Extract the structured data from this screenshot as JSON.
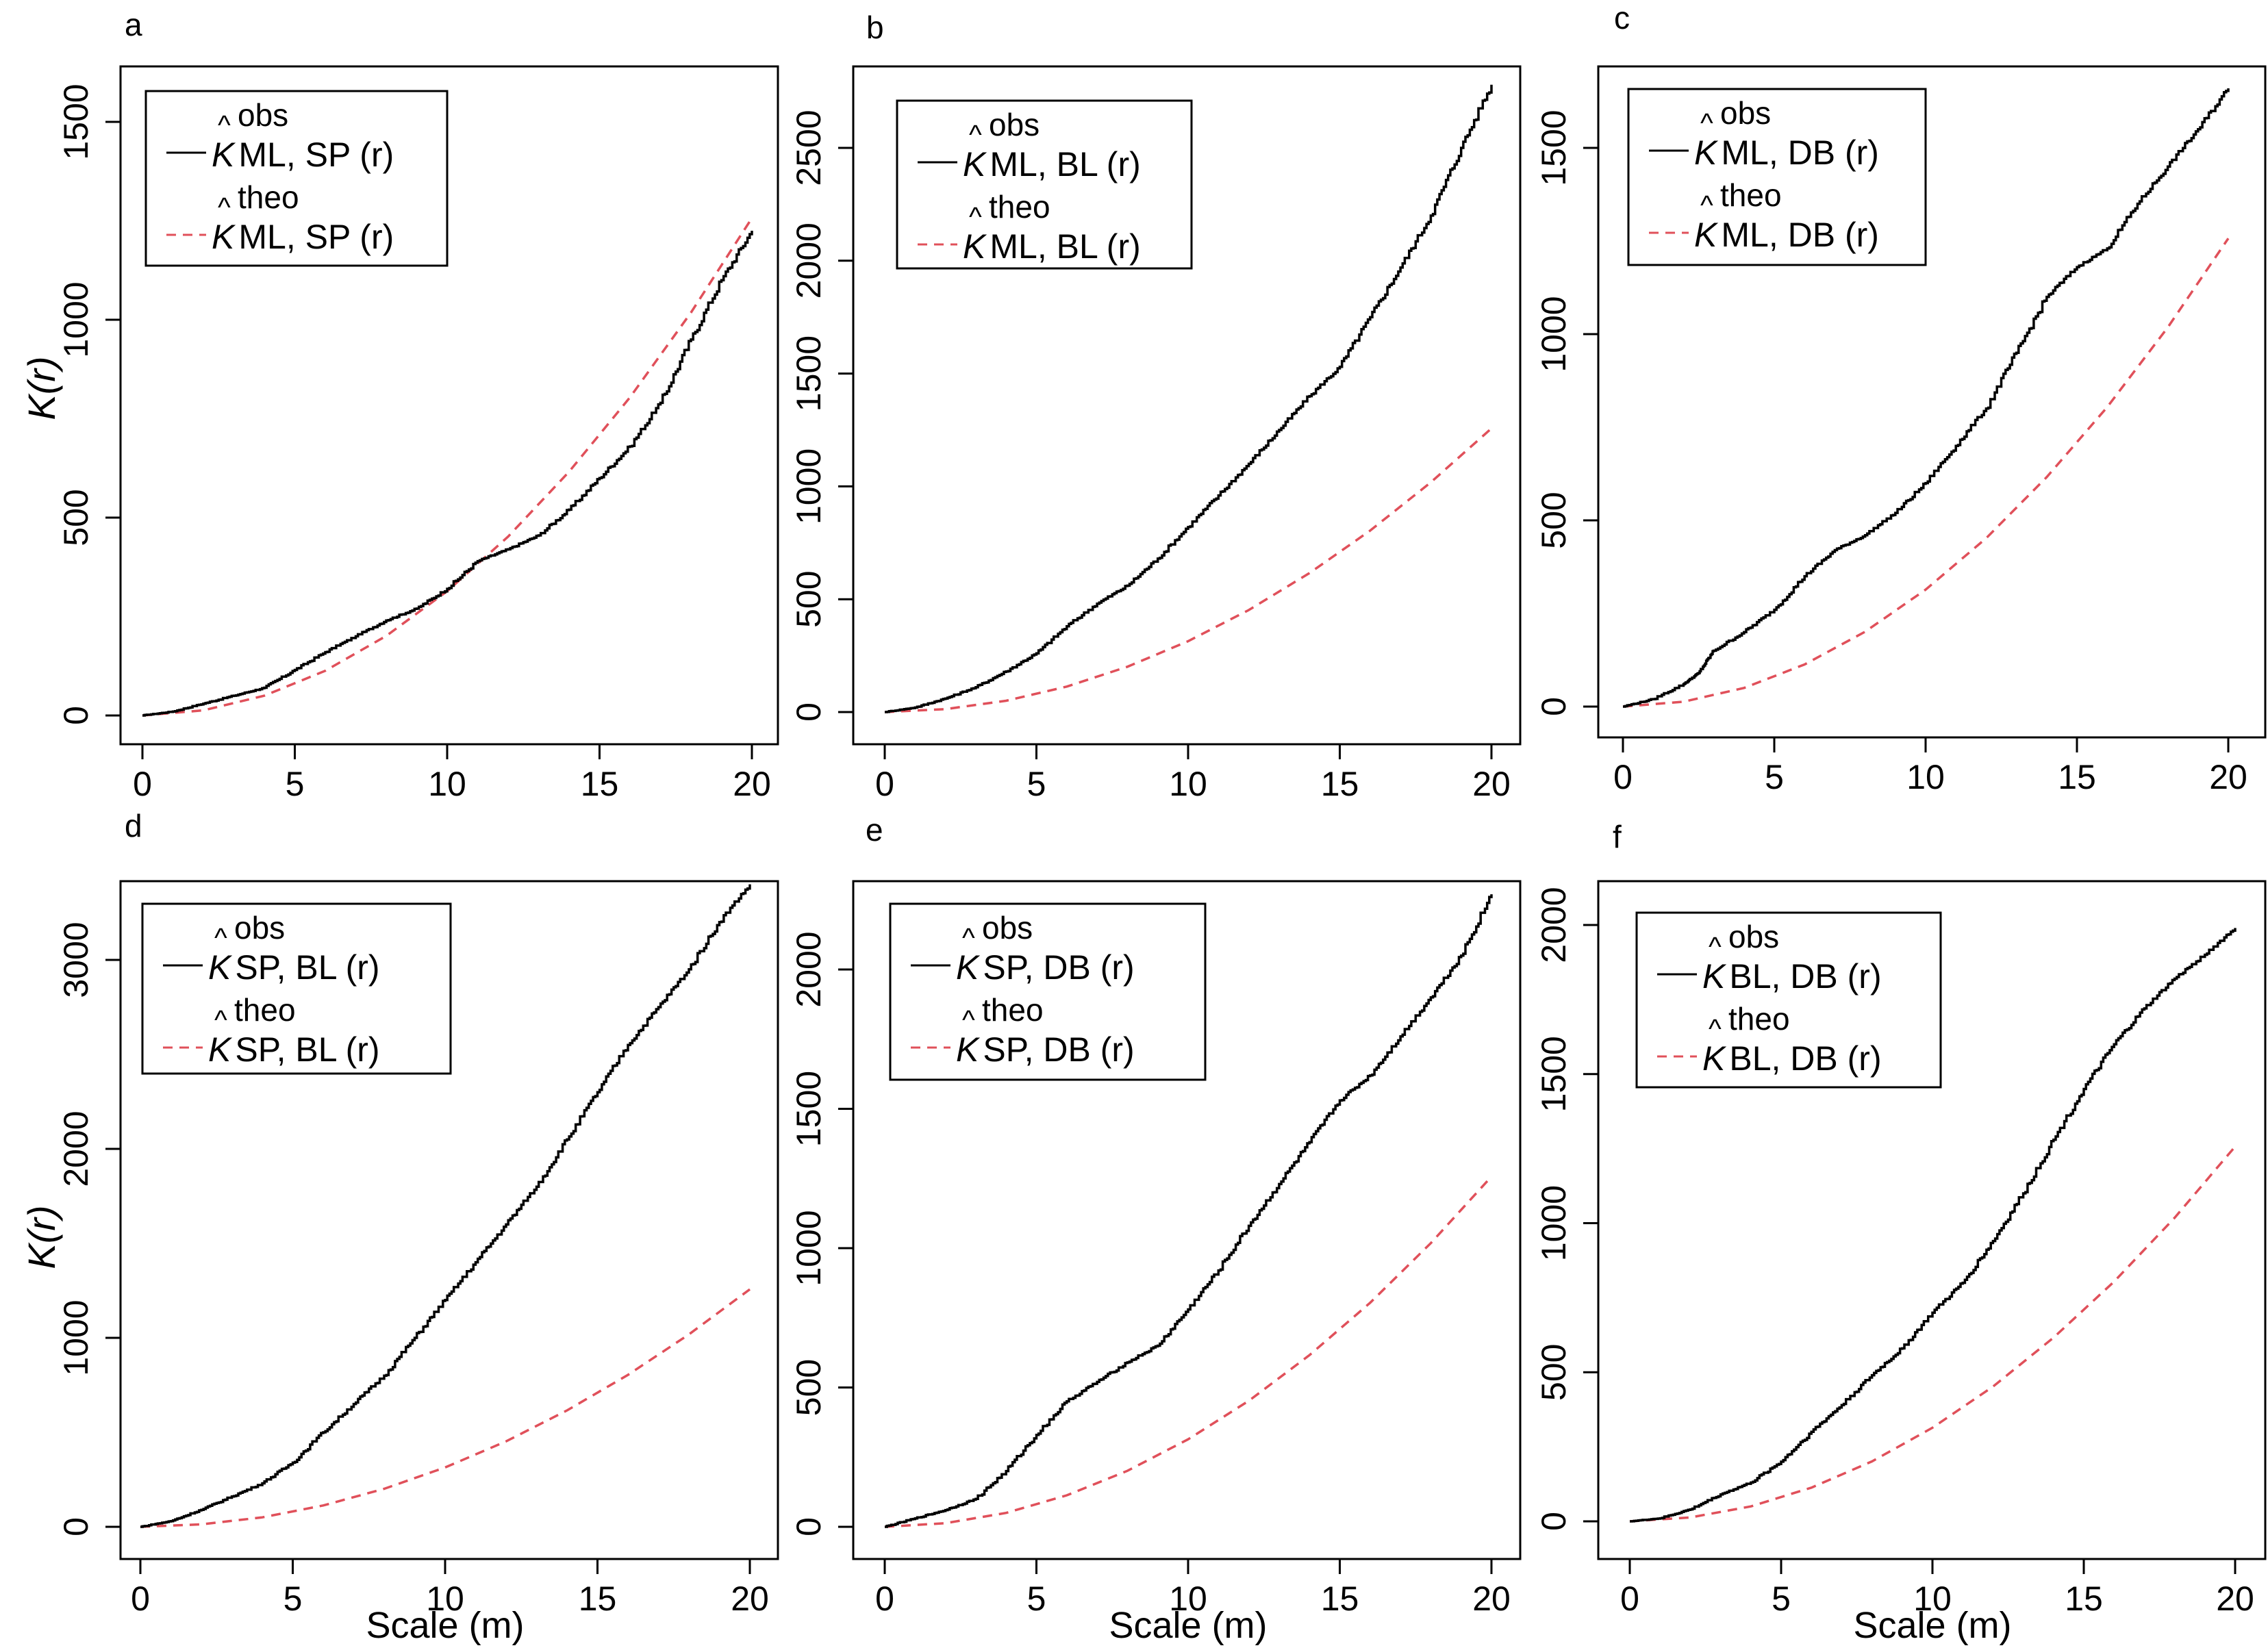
{
  "figure": {
    "shared_ylabel": "K(r)",
    "shared_xlabel": "Scale (m)",
    "obs_color": "#000000",
    "theo_color": "#e0505a"
  },
  "chart_data": [
    {
      "panel": "a",
      "type": "line",
      "xlim": [
        0,
        20
      ],
      "ylim": [
        0,
        1500
      ],
      "xticks": [
        0,
        5,
        10,
        15,
        20
      ],
      "yticks": [
        0,
        500,
        1000,
        1500
      ],
      "ylabel": "K(r)",
      "xlabel": "",
      "legend": [
        {
          "symbol": "K",
          "sup": "obs",
          "sub": "ML, SP",
          "arg": "(r)",
          "style": "solid"
        },
        {
          "symbol": "K",
          "sup": "theo",
          "sub": "ML, SP",
          "arg": "(r)",
          "style": "dashed"
        }
      ],
      "series": [
        {
          "name": "obs",
          "x": [
            0,
            1,
            2,
            3,
            4,
            5,
            6,
            7,
            8,
            9,
            10,
            11,
            12,
            13,
            14,
            15,
            16,
            17,
            18,
            19,
            20
          ],
          "values": [
            0,
            10,
            30,
            50,
            70,
            115,
            160,
            200,
            240,
            270,
            320,
            390,
            420,
            455,
            520,
            600,
            680,
            790,
            950,
            1100,
            1225
          ]
        },
        {
          "name": "theo",
          "x": [
            0,
            2,
            4,
            6,
            8,
            10,
            12,
            14,
            16,
            18,
            20
          ],
          "values": [
            0,
            13,
            50,
            113,
            201,
            314,
            452,
            616,
            804,
            1018,
            1257
          ]
        }
      ]
    },
    {
      "panel": "b",
      "type": "line",
      "xlim": [
        0,
        20
      ],
      "ylim": [
        0,
        2500
      ],
      "xticks": [
        0,
        5,
        10,
        15,
        20
      ],
      "yticks": [
        0,
        500,
        1000,
        1500,
        2000,
        2500
      ],
      "ylabel": "",
      "xlabel": "",
      "legend": [
        {
          "symbol": "K",
          "sup": "obs",
          "sub": "ML, BL",
          "arg": "(r)",
          "style": "solid"
        },
        {
          "symbol": "K",
          "sup": "theo",
          "sub": "ML, BL",
          "arg": "(r)",
          "style": "dashed"
        }
      ],
      "series": [
        {
          "name": "obs",
          "x": [
            0,
            1,
            2,
            3,
            4,
            5,
            6,
            7,
            8,
            9,
            10,
            11,
            12,
            13,
            14,
            15,
            16,
            17,
            18,
            19,
            20
          ],
          "values": [
            0,
            20,
            60,
            110,
            180,
            260,
            380,
            480,
            560,
            680,
            820,
            960,
            1100,
            1250,
            1400,
            1530,
            1750,
            1970,
            2200,
            2500,
            2780
          ]
        },
        {
          "name": "theo",
          "x": [
            0,
            2,
            4,
            6,
            8,
            10,
            12,
            14,
            16,
            18,
            20
          ],
          "values": [
            0,
            13,
            50,
            113,
            201,
            314,
            452,
            616,
            804,
            1018,
            1257
          ]
        }
      ]
    },
    {
      "panel": "c",
      "type": "line",
      "xlim": [
        0,
        20
      ],
      "ylim": [
        0,
        1500
      ],
      "xticks": [
        0,
        5,
        10,
        15,
        20
      ],
      "yticks": [
        0,
        500,
        1000,
        1500
      ],
      "ylabel": "",
      "xlabel": "",
      "legend": [
        {
          "symbol": "K",
          "sup": "obs",
          "sub": "ML, DB",
          "arg": "(r)",
          "style": "solid"
        },
        {
          "symbol": "K",
          "sup": "theo",
          "sub": "ML, DB",
          "arg": "(r)",
          "style": "dashed"
        }
      ],
      "series": [
        {
          "name": "obs",
          "x": [
            0,
            1,
            2,
            2.5,
            3,
            4,
            5,
            6,
            7,
            8,
            9,
            10,
            11,
            12,
            13,
            14,
            15,
            16,
            17,
            18,
            19,
            20
          ],
          "values": [
            0,
            20,
            60,
            90,
            150,
            200,
            260,
            350,
            420,
            460,
            520,
            600,
            700,
            800,
            950,
            1100,
            1180,
            1230,
            1350,
            1450,
            1550,
            1660
          ]
        },
        {
          "name": "theo",
          "x": [
            0,
            2,
            4,
            6,
            8,
            10,
            12,
            14,
            16,
            18,
            20
          ],
          "values": [
            0,
            13,
            50,
            113,
            201,
            314,
            452,
            616,
            804,
            1018,
            1257
          ]
        }
      ]
    },
    {
      "panel": "d",
      "type": "line",
      "xlim": [
        0,
        20
      ],
      "ylim": [
        0,
        3000
      ],
      "xticks": [
        0,
        5,
        10,
        15,
        20
      ],
      "yticks": [
        0,
        1000,
        2000,
        3000
      ],
      "ylabel": "K(r)",
      "xlabel": "Scale (m)",
      "legend": [
        {
          "symbol": "K",
          "sup": "obs",
          "sub": "SP, BL",
          "arg": "(r)",
          "style": "solid"
        },
        {
          "symbol": "K",
          "sup": "theo",
          "sub": "SP, BL",
          "arg": "(r)",
          "style": "dashed"
        }
      ],
      "series": [
        {
          "name": "obs",
          "x": [
            0,
            1,
            2,
            3,
            4,
            5,
            6,
            7,
            8,
            9,
            10,
            11,
            12,
            13,
            14,
            15,
            16,
            17,
            18,
            19,
            20
          ],
          "values": [
            0,
            30,
            90,
            160,
            230,
            340,
            500,
            650,
            800,
            1000,
            1200,
            1400,
            1600,
            1800,
            2050,
            2300,
            2550,
            2750,
            2950,
            3200,
            3400
          ]
        },
        {
          "name": "theo",
          "x": [
            0,
            2,
            4,
            6,
            8,
            10,
            12,
            14,
            16,
            18,
            20
          ],
          "values": [
            0,
            13,
            50,
            113,
            201,
            314,
            452,
            616,
            804,
            1018,
            1257
          ]
        }
      ]
    },
    {
      "panel": "e",
      "type": "line",
      "xlim": [
        0,
        20
      ],
      "ylim": [
        0,
        2000
      ],
      "xticks": [
        0,
        5,
        10,
        15,
        20
      ],
      "yticks": [
        0,
        500,
        1000,
        1500,
        2000
      ],
      "ylabel": "",
      "xlabel": "Scale (m)",
      "legend": [
        {
          "symbol": "K",
          "sup": "obs",
          "sub": "SP, DB",
          "arg": "(r)",
          "style": "solid"
        },
        {
          "symbol": "K",
          "sup": "theo",
          "sub": "SP, DB",
          "arg": "(r)",
          "style": "dashed"
        }
      ],
      "series": [
        {
          "name": "obs",
          "x": [
            0,
            1,
            2,
            3,
            4,
            5,
            6,
            7,
            8,
            9,
            10,
            11,
            12,
            13,
            14,
            15,
            16,
            17,
            18,
            19,
            20
          ],
          "values": [
            0,
            30,
            60,
            100,
            200,
            330,
            450,
            520,
            590,
            650,
            780,
            920,
            1080,
            1230,
            1380,
            1530,
            1620,
            1760,
            1900,
            2050,
            2270
          ]
        },
        {
          "name": "theo",
          "x": [
            0,
            2,
            4,
            6,
            8,
            10,
            12,
            14,
            16,
            18,
            20
          ],
          "values": [
            0,
            13,
            50,
            113,
            201,
            314,
            452,
            616,
            804,
            1018,
            1257
          ]
        }
      ]
    },
    {
      "panel": "f",
      "type": "line",
      "xlim": [
        0,
        20
      ],
      "ylim": [
        0,
        2000
      ],
      "xticks": [
        0,
        5,
        10,
        15,
        20
      ],
      "yticks": [
        0,
        500,
        1000,
        1500,
        2000
      ],
      "ylabel": "",
      "xlabel": "Scale (m)",
      "legend": [
        {
          "symbol": "K",
          "sup": "obs",
          "sub": "BL, DB",
          "arg": "(r)",
          "style": "solid"
        },
        {
          "symbol": "K",
          "sup": "theo",
          "sub": "BL, DB",
          "arg": "(r)",
          "style": "dashed"
        }
      ],
      "series": [
        {
          "name": "obs",
          "x": [
            0,
            1,
            2,
            3,
            4,
            5,
            6,
            7,
            8,
            9,
            10,
            11,
            12,
            13,
            14,
            15,
            16,
            17,
            18,
            19,
            20
          ],
          "values": [
            0,
            10,
            40,
            90,
            130,
            200,
            300,
            390,
            490,
            580,
            700,
            800,
            940,
            1100,
            1280,
            1450,
            1600,
            1720,
            1820,
            1900,
            1990
          ]
        },
        {
          "name": "theo",
          "x": [
            0,
            2,
            4,
            6,
            8,
            10,
            12,
            14,
            16,
            18,
            20
          ],
          "values": [
            0,
            13,
            50,
            113,
            201,
            314,
            452,
            616,
            804,
            1018,
            1257
          ]
        }
      ]
    }
  ]
}
